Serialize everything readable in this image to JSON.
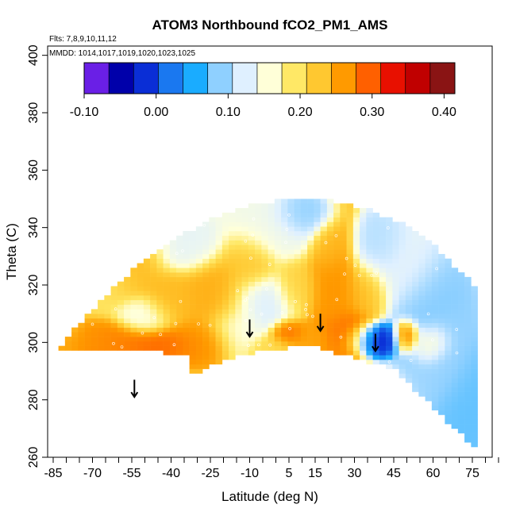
{
  "chart_data": {
    "type": "heatmap",
    "title": "ATOM3 Northbound fCO2_PM1_AMS",
    "flights_note": "Flts: 7,8,9,10,11,12",
    "dates_note": "MMDD: 1014,1017,1019,1020,1023,1025",
    "xlabel": "Latitude (deg N)",
    "ylabel": "Theta (C)",
    "xlim": [
      -85,
      85
    ],
    "ylim": [
      260,
      405
    ],
    "x_ticks": [
      -85,
      -70,
      -55,
      -40,
      -25,
      -10,
      5,
      15,
      30,
      45,
      60,
      75
    ],
    "y_ticks": [
      260,
      280,
      300,
      320,
      340,
      360,
      380,
      400
    ],
    "colorbar": {
      "ticks": [
        -0.1,
        0.0,
        0.1,
        0.2,
        0.3,
        0.4
      ],
      "tick_labels": [
        "-0.10",
        "0.00",
        "0.10",
        "0.20",
        "0.30",
        "0.40"
      ],
      "min": -0.1,
      "max": 0.415,
      "colors": [
        "#6a1fe6",
        "#0000aa",
        "#0a2ed6",
        "#1a78f0",
        "#1aacff",
        "#8fd0ff",
        "#dff0ff",
        "#ffffd8",
        "#ffe866",
        "#ffc830",
        "#ff9a00",
        "#ff6000",
        "#e81000",
        "#c00000",
        "#8a1414"
      ]
    },
    "tropopause_arrows": [
      {
        "lat": -54,
        "theta": 281
      },
      {
        "lat": -10,
        "theta": 302
      },
      {
        "lat": 17,
        "theta": 304
      },
      {
        "lat": 38,
        "theta": 297
      }
    ],
    "grid": false,
    "legend_position": "top"
  }
}
